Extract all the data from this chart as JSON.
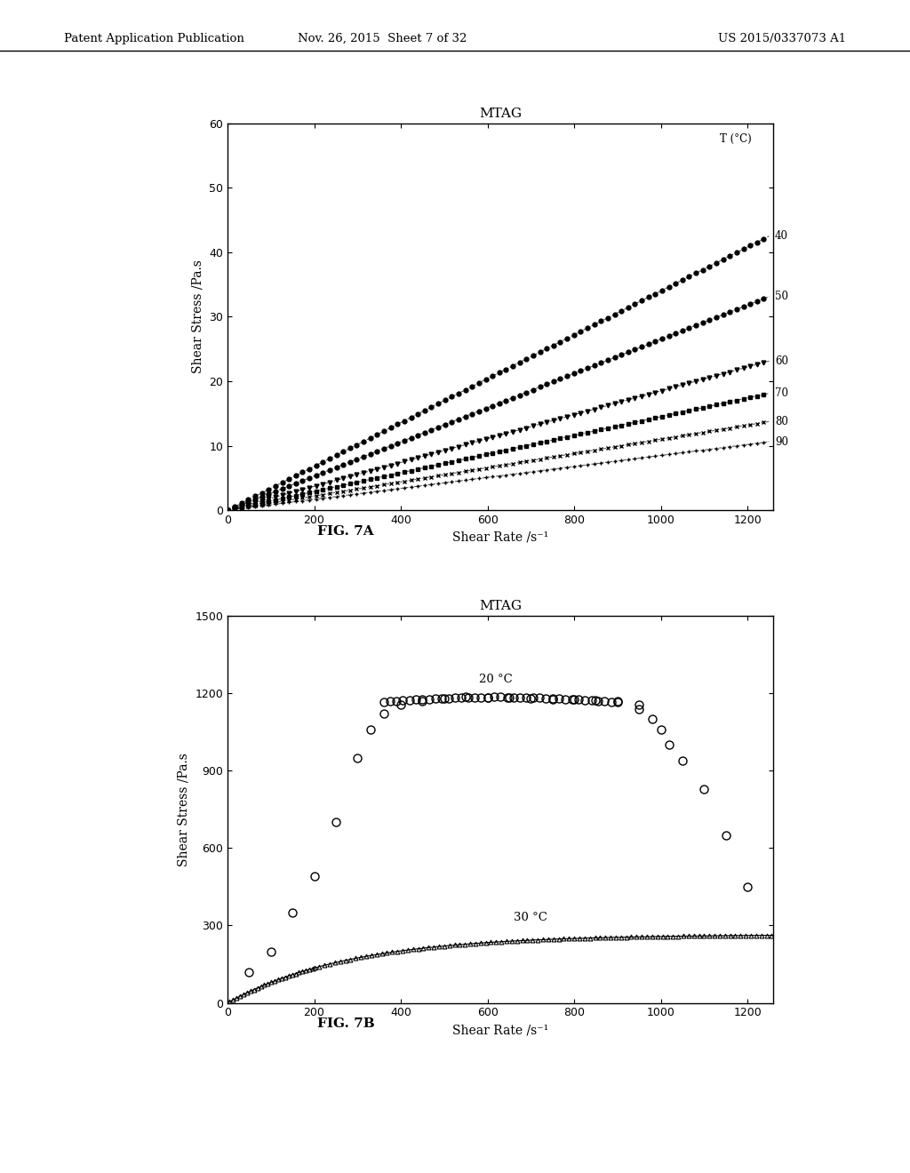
{
  "header_left": "Patent Application Publication",
  "header_mid": "Nov. 26, 2015  Sheet 7 of 32",
  "header_right": "US 2015/0337073 A1",
  "fig7a": {
    "title": "MTAG",
    "xlabel": "Shear Rate /s⁻¹",
    "ylabel": "Shear Stress /Pa.s",
    "xlim": [
      0,
      1260
    ],
    "ylim": [
      0,
      60
    ],
    "xticks": [
      0,
      200,
      400,
      600,
      800,
      1000,
      1200
    ],
    "yticks": [
      0,
      10,
      20,
      30,
      40,
      50,
      60
    ],
    "legend_title": "T (°C)",
    "series": [
      {
        "label": "40",
        "slope": 0.033,
        "power": 1.0,
        "marker": "o",
        "filled": true
      },
      {
        "label": "50",
        "slope": 0.026,
        "power": 1.0,
        "marker": "o",
        "filled": true
      },
      {
        "label": "60",
        "slope": 0.019,
        "power": 1.0,
        "marker": "v",
        "filled": true
      },
      {
        "label": "70",
        "slope": 0.0145,
        "power": 1.0,
        "marker": "s",
        "filled": true
      },
      {
        "label": "80",
        "slope": 0.011,
        "power": 1.0,
        "marker": "x",
        "filled": false
      },
      {
        "label": "90",
        "slope": 0.009,
        "power": 1.0,
        "marker": "+",
        "filled": false
      }
    ]
  },
  "fig7b": {
    "title": "MTAG",
    "xlabel": "Shear Rate /s⁻¹",
    "ylabel": "Shear Stress /Pa.s",
    "xlim": [
      0,
      1260
    ],
    "ylim": [
      0,
      1500
    ],
    "xticks": [
      0,
      200,
      400,
      600,
      800,
      1000,
      1200
    ],
    "yticks": [
      0,
      300,
      600,
      900,
      1200,
      1500
    ],
    "label_20c": "20 °C",
    "label_30c": "30 °C"
  },
  "fig_label_a": "FIG. 7A",
  "fig_label_b": "FIG. 7B",
  "bg_color": "#ffffff",
  "text_color": "#000000"
}
